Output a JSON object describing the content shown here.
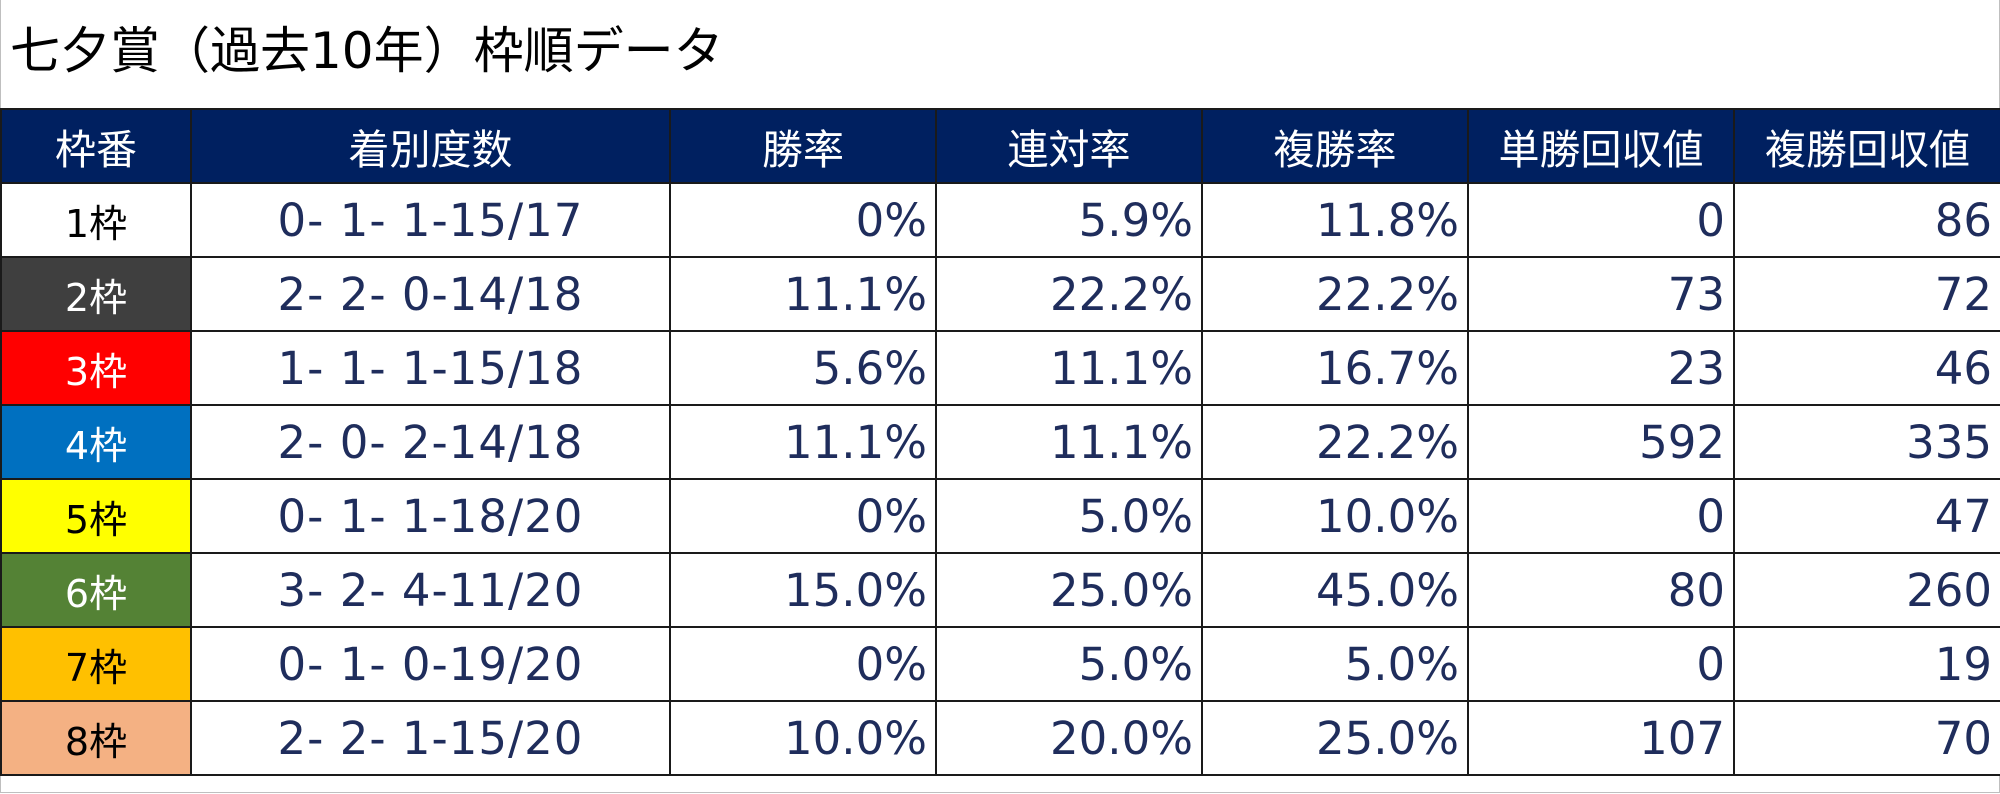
{
  "title": "七夕賞（過去10年）枠順データ",
  "header": [
    "枠番",
    "着別度数",
    "勝率",
    "連対率",
    "複勝率",
    "単勝回収値",
    "複勝回収値"
  ],
  "colors": {
    "header_bg": "#002060",
    "header_text": "#ffffff",
    "value_text": "#1f2d5c"
  },
  "rows": [
    {
      "frame": "1枠",
      "bg": "#ffffff",
      "fg": "#000000",
      "record": "0- 1- 1-15/17",
      "win_rate": "0%",
      "quinella_rate": "5.9%",
      "place_rate": "11.8%",
      "win_return": "0",
      "place_return": "86"
    },
    {
      "frame": "2枠",
      "bg": "#3f3f3f",
      "fg": "#ffffff",
      "record": "2- 2- 0-14/18",
      "win_rate": "11.1%",
      "quinella_rate": "22.2%",
      "place_rate": "22.2%",
      "win_return": "73",
      "place_return": "72"
    },
    {
      "frame": "3枠",
      "bg": "#ff0000",
      "fg": "#ffffff",
      "record": "1- 1- 1-15/18",
      "win_rate": "5.6%",
      "quinella_rate": "11.1%",
      "place_rate": "16.7%",
      "win_return": "23",
      "place_return": "46"
    },
    {
      "frame": "4枠",
      "bg": "#0070c0",
      "fg": "#ffffff",
      "record": "2- 0- 2-14/18",
      "win_rate": "11.1%",
      "quinella_rate": "11.1%",
      "place_rate": "22.2%",
      "win_return": "592",
      "place_return": "335"
    },
    {
      "frame": "5枠",
      "bg": "#ffff00",
      "fg": "#000000",
      "record": "0- 1- 1-18/20",
      "win_rate": "0%",
      "quinella_rate": "5.0%",
      "place_rate": "10.0%",
      "win_return": "0",
      "place_return": "47"
    },
    {
      "frame": "6枠",
      "bg": "#548235",
      "fg": "#ffffff",
      "record": "3- 2- 4-11/20",
      "win_rate": "15.0%",
      "quinella_rate": "25.0%",
      "place_rate": "45.0%",
      "win_return": "80",
      "place_return": "260"
    },
    {
      "frame": "7枠",
      "bg": "#ffc000",
      "fg": "#000000",
      "record": "0- 1- 0-19/20",
      "win_rate": "0%",
      "quinella_rate": "5.0%",
      "place_rate": "5.0%",
      "win_return": "0",
      "place_return": "19"
    },
    {
      "frame": "8枠",
      "bg": "#f4b183",
      "fg": "#000000",
      "record": "2- 2- 1-15/20",
      "win_rate": "10.0%",
      "quinella_rate": "20.0%",
      "place_rate": "25.0%",
      "win_return": "107",
      "place_return": "70"
    }
  ]
}
